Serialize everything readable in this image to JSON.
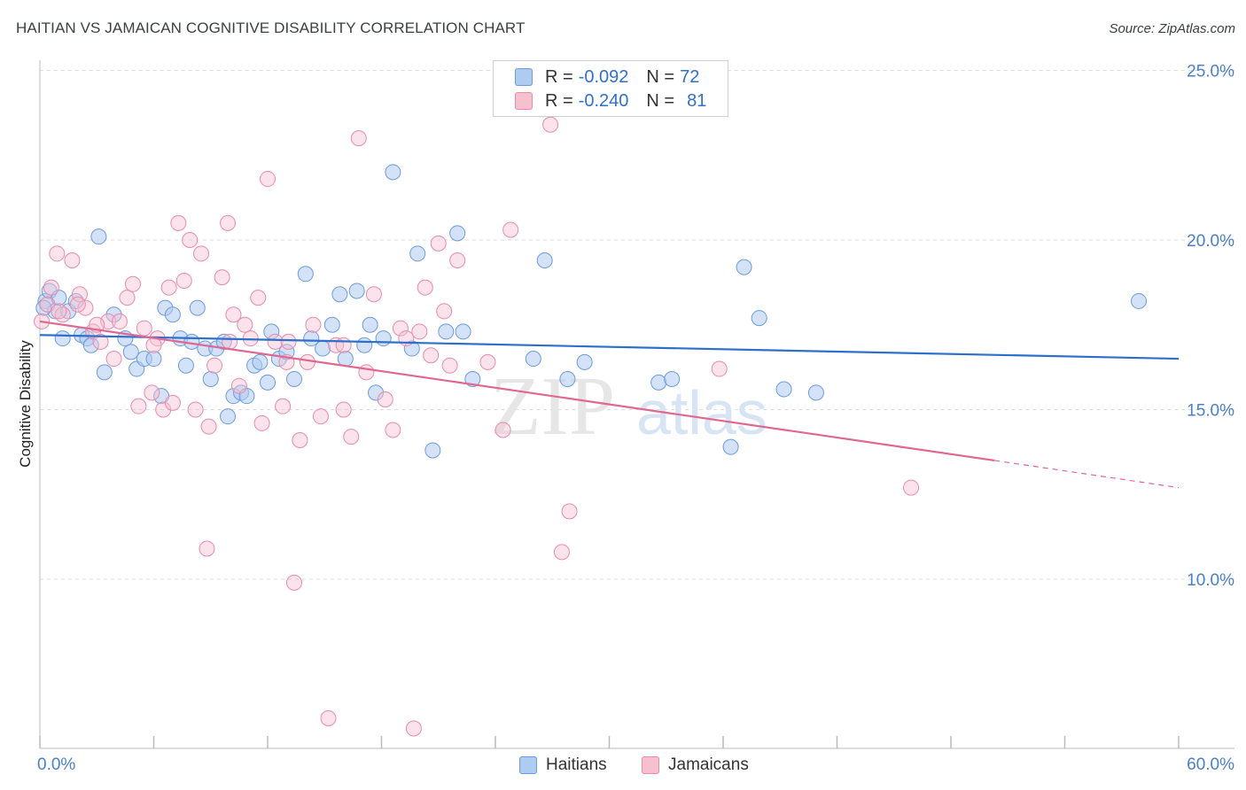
{
  "title": "HAITIAN VS JAMAICAN COGNITIVE DISABILITY CORRELATION CHART",
  "source": "Source: ZipAtlas.com",
  "watermark": {
    "zip": "ZIP",
    "atlas": "atlas"
  },
  "colors": {
    "haitians_fill": "#aecbf0",
    "haitians_stroke": "#6b9be0",
    "haitians_line": "#2e6fcc",
    "jamaicans_fill": "#f5c0d0",
    "jamaicans_stroke": "#e98aab",
    "jamaicans_line": "#e0678f",
    "tick_text": "#4a80c8",
    "grid": "#dddddd"
  },
  "stats": {
    "haitians": {
      "r_label": "R =",
      "r_value": "-0.092",
      "n_label": "N =",
      "n_value": "72"
    },
    "jamaicans": {
      "r_label": "R =",
      "r_value": "-0.240",
      "n_label": "N =",
      "n_value": "81"
    }
  },
  "legend": {
    "haitians": "Haitians",
    "jamaicans": "Jamaicans"
  },
  "chart_data": {
    "type": "scatter",
    "title": "HAITIAN VS JAMAICAN COGNITIVE DISABILITY CORRELATION CHART",
    "xlabel": "",
    "ylabel": "Cognitive Disability",
    "xlim": [
      0,
      60
    ],
    "ylim": [
      5,
      26
    ],
    "x_tick_labels": {
      "left": "0.0%",
      "right": "60.0%"
    },
    "y_ticks": [
      {
        "value": 25,
        "label": "25.0%"
      },
      {
        "value": 20,
        "label": "20.0%"
      },
      {
        "value": 15,
        "label": "15.0%"
      },
      {
        "value": 10,
        "label": "10.0%"
      }
    ],
    "grid": true,
    "legend_position": "bottom-center",
    "series": [
      {
        "name": "Haitians",
        "trend": {
          "x": [
            0,
            60
          ],
          "y": [
            17.2,
            16.5
          ],
          "dashed_from": null
        },
        "points": [
          [
            0.3,
            18.2
          ],
          [
            0.5,
            18.5
          ],
          [
            0.8,
            17.9
          ],
          [
            1.0,
            18.3
          ],
          [
            1.2,
            17.1
          ],
          [
            1.5,
            17.9
          ],
          [
            1.9,
            18.2
          ],
          [
            2.2,
            17.2
          ],
          [
            2.5,
            17.1
          ],
          [
            2.7,
            16.9
          ],
          [
            3.1,
            20.1
          ],
          [
            3.4,
            16.1
          ],
          [
            3.9,
            17.8
          ],
          [
            4.5,
            17.1
          ],
          [
            4.8,
            16.7
          ],
          [
            5.1,
            16.2
          ],
          [
            5.5,
            16.5
          ],
          [
            6.0,
            16.5
          ],
          [
            6.4,
            15.4
          ],
          [
            6.6,
            18.0
          ],
          [
            7.0,
            17.8
          ],
          [
            7.4,
            17.1
          ],
          [
            7.7,
            16.3
          ],
          [
            8.0,
            17.0
          ],
          [
            8.3,
            18.0
          ],
          [
            8.7,
            16.8
          ],
          [
            9.0,
            15.9
          ],
          [
            9.3,
            16.8
          ],
          [
            9.7,
            17.0
          ],
          [
            9.9,
            14.8
          ],
          [
            10.2,
            15.4
          ],
          [
            10.6,
            15.5
          ],
          [
            10.9,
            15.4
          ],
          [
            11.3,
            16.3
          ],
          [
            11.6,
            16.4
          ],
          [
            12.0,
            15.8
          ],
          [
            12.2,
            17.3
          ],
          [
            12.6,
            16.5
          ],
          [
            13.0,
            16.7
          ],
          [
            13.4,
            15.9
          ],
          [
            14.0,
            19.0
          ],
          [
            14.3,
            17.1
          ],
          [
            14.9,
            16.8
          ],
          [
            15.4,
            17.5
          ],
          [
            15.8,
            18.4
          ],
          [
            16.1,
            16.5
          ],
          [
            16.7,
            18.5
          ],
          [
            17.1,
            16.9
          ],
          [
            17.4,
            17.5
          ],
          [
            17.7,
            15.5
          ],
          [
            18.1,
            17.1
          ],
          [
            18.6,
            22.0
          ],
          [
            19.6,
            16.8
          ],
          [
            19.9,
            19.6
          ],
          [
            20.7,
            13.8
          ],
          [
            21.4,
            17.3
          ],
          [
            22.0,
            20.2
          ],
          [
            22.3,
            17.3
          ],
          [
            22.8,
            15.9
          ],
          [
            26.0,
            16.5
          ],
          [
            26.6,
            19.4
          ],
          [
            27.8,
            15.9
          ],
          [
            28.7,
            16.4
          ],
          [
            32.6,
            15.8
          ],
          [
            33.3,
            15.9
          ],
          [
            36.4,
            13.9
          ],
          [
            37.1,
            19.2
          ],
          [
            37.9,
            17.7
          ],
          [
            39.2,
            15.6
          ],
          [
            40.9,
            15.5
          ],
          [
            57.9,
            18.2
          ],
          [
            0.2,
            18.0
          ]
        ]
      },
      {
        "name": "Jamaicans",
        "trend": {
          "x": [
            0,
            50.3
          ],
          "y": [
            17.6,
            13.5
          ],
          "dashed_to": [
            60,
            12.7
          ]
        },
        "points": [
          [
            0.1,
            17.6
          ],
          [
            0.4,
            18.1
          ],
          [
            0.6,
            18.6
          ],
          [
            0.9,
            19.6
          ],
          [
            1.2,
            17.8
          ],
          [
            1.7,
            19.4
          ],
          [
            2.1,
            18.4
          ],
          [
            2.4,
            18.0
          ],
          [
            2.8,
            17.3
          ],
          [
            3.2,
            17.0
          ],
          [
            3.6,
            17.6
          ],
          [
            3.9,
            16.5
          ],
          [
            4.2,
            17.6
          ],
          [
            4.6,
            18.3
          ],
          [
            4.9,
            18.7
          ],
          [
            5.2,
            15.1
          ],
          [
            5.5,
            17.4
          ],
          [
            5.9,
            15.5
          ],
          [
            6.2,
            17.1
          ],
          [
            6.5,
            15.0
          ],
          [
            6.8,
            18.6
          ],
          [
            7.0,
            15.2
          ],
          [
            7.3,
            20.5
          ],
          [
            7.6,
            18.8
          ],
          [
            7.9,
            20.0
          ],
          [
            8.2,
            15.0
          ],
          [
            8.5,
            19.6
          ],
          [
            8.8,
            10.9
          ],
          [
            8.9,
            14.5
          ],
          [
            9.2,
            16.3
          ],
          [
            9.6,
            18.9
          ],
          [
            9.9,
            20.5
          ],
          [
            10.2,
            17.8
          ],
          [
            10.5,
            15.7
          ],
          [
            10.8,
            17.5
          ],
          [
            11.1,
            17.1
          ],
          [
            11.5,
            18.3
          ],
          [
            11.7,
            14.6
          ],
          [
            12.0,
            21.8
          ],
          [
            12.4,
            17.0
          ],
          [
            12.8,
            15.1
          ],
          [
            13.1,
            17.0
          ],
          [
            13.4,
            9.9
          ],
          [
            13.7,
            14.1
          ],
          [
            14.1,
            16.4
          ],
          [
            14.4,
            17.5
          ],
          [
            14.8,
            14.8
          ],
          [
            15.2,
            5.9
          ],
          [
            15.6,
            16.9
          ],
          [
            16.0,
            15.0
          ],
          [
            16.4,
            14.2
          ],
          [
            16.8,
            23.0
          ],
          [
            17.2,
            16.1
          ],
          [
            17.6,
            18.4
          ],
          [
            18.2,
            15.3
          ],
          [
            18.6,
            14.4
          ],
          [
            19.0,
            17.4
          ],
          [
            19.3,
            17.1
          ],
          [
            19.7,
            5.6
          ],
          [
            20.0,
            17.3
          ],
          [
            20.3,
            18.6
          ],
          [
            20.6,
            16.6
          ],
          [
            21.0,
            19.9
          ],
          [
            21.3,
            17.9
          ],
          [
            21.6,
            16.3
          ],
          [
            22.0,
            19.4
          ],
          [
            23.6,
            16.4
          ],
          [
            24.4,
            14.4
          ],
          [
            24.8,
            20.3
          ],
          [
            26.9,
            23.4
          ],
          [
            27.5,
            10.8
          ],
          [
            27.9,
            12.0
          ],
          [
            35.8,
            16.2
          ],
          [
            45.9,
            12.7
          ],
          [
            1.0,
            17.9
          ],
          [
            2.0,
            18.1
          ],
          [
            3.0,
            17.5
          ],
          [
            6.0,
            16.9
          ],
          [
            10.0,
            17.0
          ],
          [
            13.0,
            16.4
          ],
          [
            16.0,
            16.9
          ]
        ]
      }
    ]
  }
}
